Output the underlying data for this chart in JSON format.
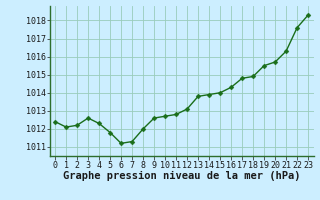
{
  "x": [
    0,
    1,
    2,
    3,
    4,
    5,
    6,
    7,
    8,
    9,
    10,
    11,
    12,
    13,
    14,
    15,
    16,
    17,
    18,
    19,
    20,
    21,
    22,
    23
  ],
  "y": [
    1012.4,
    1012.1,
    1012.2,
    1012.6,
    1012.3,
    1011.8,
    1011.2,
    1011.3,
    1012.0,
    1012.6,
    1012.7,
    1012.8,
    1013.1,
    1013.8,
    1013.9,
    1014.0,
    1014.3,
    1014.8,
    1014.9,
    1015.5,
    1015.7,
    1016.3,
    1017.6,
    1018.3
  ],
  "line_color": "#1a6e1a",
  "marker_color": "#1a6e1a",
  "bg_color": "#cceeff",
  "grid_color": "#99ccbb",
  "xlabel": "Graphe pression niveau de la mer (hPa)",
  "ylim": [
    1010.5,
    1018.8
  ],
  "yticks": [
    1011,
    1012,
    1013,
    1014,
    1015,
    1016,
    1017,
    1018
  ],
  "xticks": [
    0,
    1,
    2,
    3,
    4,
    5,
    6,
    7,
    8,
    9,
    10,
    11,
    12,
    13,
    14,
    15,
    16,
    17,
    18,
    19,
    20,
    21,
    22,
    23
  ],
  "xlabel_fontsize": 7.5,
  "tick_fontsize": 6.0,
  "line_width": 1.0,
  "marker_size": 2.5
}
